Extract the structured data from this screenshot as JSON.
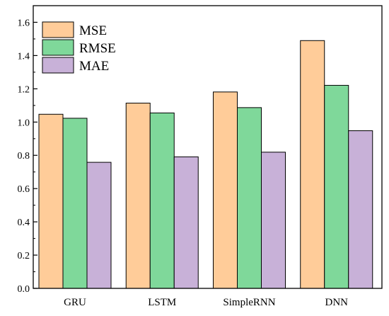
{
  "chart_data": {
    "type": "bar",
    "categories": [
      "GRU",
      "LSTM",
      "SimpleRNN",
      "DNN"
    ],
    "series": [
      {
        "name": "MSE",
        "values": [
          1.047,
          1.114,
          1.181,
          1.49
        ]
      },
      {
        "name": "RMSE",
        "values": [
          1.023,
          1.055,
          1.087,
          1.221
        ]
      },
      {
        "name": "MAE",
        "values": [
          0.758,
          0.791,
          0.819,
          0.948
        ]
      }
    ],
    "colors": [
      "#FFCC99",
      "#7FD89A",
      "#C8B1D8"
    ],
    "ylim": [
      0,
      1.7
    ],
    "yticks": [
      0.0,
      0.2,
      0.4,
      0.6,
      0.8,
      1.0,
      1.2,
      1.4,
      1.6
    ],
    "ytick_labels": [
      "0.0",
      "0.2",
      "0.4",
      "0.6",
      "0.8",
      "1.0",
      "1.2",
      "1.4",
      "1.6"
    ],
    "title": "",
    "xlabel": "",
    "ylabel": "",
    "legend_position": "top-left",
    "grid": false
  }
}
